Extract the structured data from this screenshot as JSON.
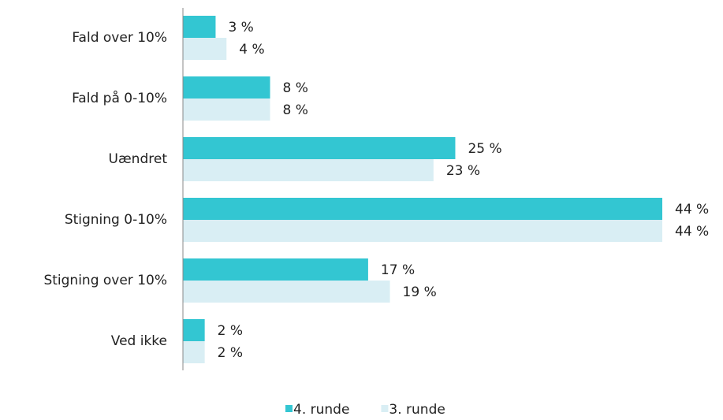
{
  "chart_data": {
    "type": "bar",
    "orientation": "horizontal",
    "categories": [
      "Fald over 10%",
      "Fald på 0-10%",
      "Uændret",
      "Stigning 0-10%",
      "Stigning over 10%",
      "Ved ikke"
    ],
    "series": [
      {
        "name": "4. runde",
        "color": "#33c6d2",
        "values": [
          3,
          8,
          25,
          44,
          17,
          2
        ],
        "value_labels": [
          "3 %",
          "8 %",
          "25 %",
          "44 %",
          "17 %",
          "2 %"
        ]
      },
      {
        "name": "3. runde",
        "color": "#d9eef4",
        "values": [
          4,
          8,
          23,
          44,
          19,
          2
        ],
        "value_labels": [
          "4 %",
          "8 %",
          "23 %",
          "44 %",
          "19 %",
          "2 %"
        ]
      }
    ],
    "legend": "bottom"
  }
}
